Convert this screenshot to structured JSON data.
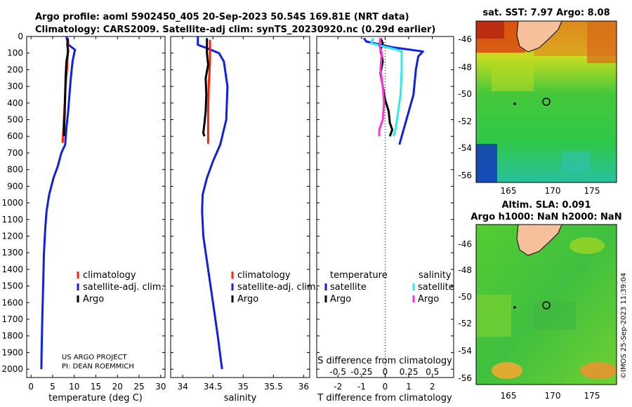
{
  "header": {
    "line1": "Argo profile: aoml 5902450_405 20-Sep-2023 50.54S 169.81E (NRT data)",
    "line2": "Climatology: CARS2009. Satellite-adj clim: synTS_20230920.nc (0.29d earlier)"
  },
  "colors": {
    "climatology": "#ff2000",
    "satellite": "#1020e0",
    "argo": "#000000",
    "sat_cyan": "#30e8e8",
    "argo_magenta": "#ff30e0"
  },
  "chart_data": [
    {
      "type": "line",
      "id": "temperature",
      "xlabel": "temperature (deg C)",
      "xlim": [
        -1,
        31
      ],
      "ylim": [
        2050,
        0
      ],
      "xticks": [
        0,
        5,
        10,
        15,
        20,
        25,
        30
      ],
      "yticks": [
        0,
        100,
        200,
        300,
        400,
        500,
        600,
        700,
        800,
        900,
        1000,
        1100,
        1200,
        1300,
        1400,
        1500,
        1600,
        1700,
        1800,
        1900,
        2000
      ],
      "series": [
        {
          "name": "satellite-adj. clim.",
          "color": "#1020e0",
          "points": [
            [
              8.2,
              0
            ],
            [
              8.4,
              25
            ],
            [
              8.7,
              50
            ],
            [
              10.2,
              80
            ],
            [
              10.0,
              100
            ],
            [
              9.6,
              150
            ],
            [
              9.2,
              250
            ],
            [
              8.9,
              350
            ],
            [
              8.6,
              450
            ],
            [
              8.2,
              550
            ],
            [
              7.9,
              650
            ],
            [
              7.0,
              700
            ],
            [
              6.2,
              780
            ],
            [
              5.2,
              850
            ],
            [
              4.2,
              950
            ],
            [
              3.6,
              1050
            ],
            [
              3.3,
              1150
            ],
            [
              3.0,
              1300
            ],
            [
              2.8,
              1500
            ],
            [
              2.6,
              1700
            ],
            [
              2.45,
              1900
            ],
            [
              2.4,
              2000
            ]
          ]
        },
        {
          "name": "climatology",
          "color": "#ff2000",
          "points": [
            [
              8.6,
              20
            ],
            [
              8.5,
              100
            ],
            [
              8.3,
              200
            ],
            [
              8.0,
              300
            ],
            [
              7.8,
              400
            ],
            [
              7.6,
              500
            ],
            [
              7.4,
              600
            ],
            [
              7.3,
              640
            ]
          ]
        },
        {
          "name": "Argo",
          "color": "#000000",
          "points": [
            [
              8.5,
              10
            ],
            [
              8.4,
              50
            ],
            [
              8.6,
              90
            ],
            [
              8.2,
              150
            ],
            [
              8.0,
              250
            ],
            [
              7.9,
              350
            ],
            [
              7.8,
              450
            ],
            [
              7.7,
              530
            ],
            [
              7.6,
              600
            ]
          ]
        }
      ],
      "legend": [
        "climatology",
        "satellite-adj. clim.",
        "Argo"
      ],
      "notes": [
        "US ARGO PROJECT",
        "PI: DEAN ROEMMICH"
      ]
    },
    {
      "type": "line",
      "id": "salinity",
      "xlabel": "salinity",
      "xlim": [
        33.8,
        36.1
      ],
      "ylim": [
        2050,
        0
      ],
      "xticks": [
        34,
        34.5,
        35,
        35.5,
        36
      ],
      "series": [
        {
          "name": "satellite-adj. clim.",
          "color": "#1020e0",
          "points": [
            [
              34.25,
              0
            ],
            [
              34.25,
              50
            ],
            [
              34.4,
              70
            ],
            [
              34.6,
              100
            ],
            [
              34.68,
              150
            ],
            [
              34.74,
              300
            ],
            [
              34.72,
              500
            ],
            [
              34.62,
              650
            ],
            [
              34.5,
              750
            ],
            [
              34.4,
              850
            ],
            [
              34.33,
              950
            ],
            [
              34.32,
              1050
            ],
            [
              34.34,
              1200
            ],
            [
              34.42,
              1400
            ],
            [
              34.5,
              1600
            ],
            [
              34.58,
              1800
            ],
            [
              34.65,
              2000
            ]
          ]
        },
        {
          "name": "climatology",
          "color": "#ff2000",
          "points": [
            [
              34.45,
              20
            ],
            [
              34.45,
              150
            ],
            [
              34.43,
              300
            ],
            [
              34.42,
              450
            ],
            [
              34.42,
              550
            ],
            [
              34.42,
              645
            ]
          ]
        },
        {
          "name": "Argo",
          "color": "#000000",
          "points": [
            [
              34.4,
              10
            ],
            [
              34.4,
              100
            ],
            [
              34.42,
              170
            ],
            [
              34.38,
              250
            ],
            [
              34.39,
              350
            ],
            [
              34.38,
              450
            ],
            [
              34.36,
              520
            ],
            [
              34.34,
              580
            ],
            [
              34.36,
              600
            ]
          ]
        }
      ],
      "legend": [
        "climatology",
        "satellite-adj. clim.",
        "Argo"
      ]
    },
    {
      "type": "line",
      "id": "difference",
      "xlabel": "T difference from climatology",
      "top_label": "S difference from climatology",
      "xlim": [
        -2.9,
        2.9
      ],
      "ylim": [
        2050,
        0
      ],
      "xticks": [
        -2,
        -1,
        0,
        1,
        2
      ],
      "top_ticks": [
        "-0.5",
        "-0.25",
        "0",
        "0.25",
        "0.5"
      ],
      "top_scale": 0.25,
      "series": [
        {
          "name": "temperature satellite",
          "color": "#1020e0",
          "points": [
            [
              -0.9,
              10
            ],
            [
              -0.8,
              30
            ],
            [
              0.3,
              65
            ],
            [
              1.6,
              90
            ],
            [
              1.4,
              120
            ],
            [
              1.3,
              200
            ],
            [
              1.2,
              350
            ],
            [
              1.0,
              450
            ],
            [
              0.8,
              550
            ],
            [
              0.6,
              650
            ]
          ]
        },
        {
          "name": "temperature Argo",
          "color": "#000000",
          "points": [
            [
              -0.2,
              10
            ],
            [
              -0.1,
              40
            ],
            [
              -0.2,
              80
            ],
            [
              -0.1,
              150
            ],
            [
              -0.2,
              220
            ],
            [
              -0.1,
              300
            ],
            [
              0.0,
              380
            ],
            [
              0.15,
              450
            ],
            [
              0.2,
              520
            ],
            [
              0.3,
              560
            ],
            [
              0.2,
              600
            ]
          ]
        },
        {
          "name": "salinity satellite",
          "color": "#30e8e8",
          "points": [
            [
              -0.5,
              10
            ],
            [
              -0.6,
              40
            ],
            [
              0.5,
              80
            ],
            [
              0.7,
              90
            ],
            [
              0.7,
              200
            ],
            [
              0.65,
              350
            ],
            [
              0.55,
              450
            ],
            [
              0.45,
              550
            ],
            [
              0.35,
              600
            ]
          ]
        },
        {
          "name": "salinity Argo",
          "color": "#ff30e0",
          "points": [
            [
              -0.2,
              10
            ],
            [
              -0.25,
              50
            ],
            [
              -0.15,
              100
            ],
            [
              -0.2,
              200
            ],
            [
              -0.1,
              300
            ],
            [
              -0.05,
              400
            ],
            [
              -0.1,
              500
            ],
            [
              -0.25,
              560
            ],
            [
              -0.25,
              600
            ]
          ]
        }
      ],
      "legend_headers": [
        "temperature",
        "salinity"
      ],
      "legend": [
        "satellite",
        "Argo",
        "satellite",
        "Argo"
      ]
    }
  ],
  "maps": [
    {
      "id": "sst",
      "title": "sat. SST: 7.97 Argo: 8.08",
      "lat_ticks": [
        "-46",
        "-48",
        "-50",
        "-52",
        "-54",
        "-56"
      ],
      "lon_ticks": [
        "165",
        "170",
        "175"
      ]
    },
    {
      "id": "sla",
      "title1": "Altim. SLA: 0.091",
      "title2": "Argo h1000: NaN h2000: NaN",
      "lat_ticks": [
        "-46",
        "-48",
        "-50",
        "-52",
        "-54",
        "-56"
      ],
      "lon_ticks": [
        "165",
        "170",
        "175"
      ]
    }
  ],
  "stamp": "©IMOS 25-Sep-2023 11:39:04"
}
